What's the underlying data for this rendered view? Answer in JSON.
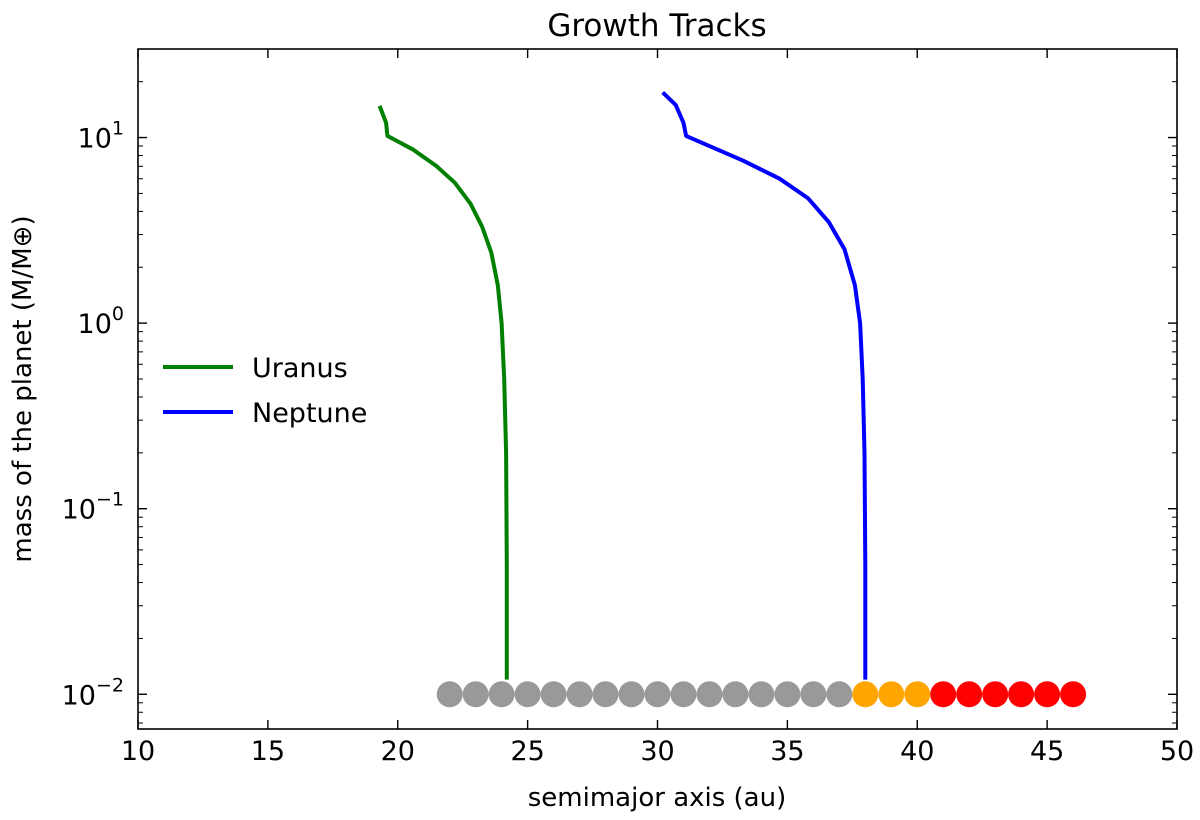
{
  "chart_data": {
    "type": "line",
    "title": "Growth Tracks",
    "xlabel": "semimajor axis (au)",
    "ylabel": "mass of the planet (M/M⊕)",
    "xlim": [
      10,
      50
    ],
    "ylim": [
      0.0065,
      30
    ],
    "yscale": "log",
    "x_ticks": [
      10,
      15,
      20,
      25,
      30,
      35,
      40,
      45,
      50
    ],
    "x_tick_labels": [
      "10",
      "15",
      "20",
      "25",
      "30",
      "35",
      "40",
      "45",
      "50"
    ],
    "y_ticks": [
      0.01,
      0.1,
      1,
      10
    ],
    "y_tick_labels": [
      {
        "base": "10",
        "exp": "−2"
      },
      {
        "base": "10",
        "exp": "−1"
      },
      {
        "base": "10",
        "exp": "0"
      },
      {
        "base": "10",
        "exp": "1"
      }
    ],
    "grid": false,
    "legend": {
      "position": "center-left"
    },
    "series": [
      {
        "name": "Uranus",
        "color": "#008000",
        "points": [
          [
            24.2,
            0.012
          ],
          [
            24.2,
            0.05
          ],
          [
            24.17,
            0.2
          ],
          [
            24.1,
            0.5
          ],
          [
            24.0,
            1.0
          ],
          [
            23.85,
            1.6
          ],
          [
            23.6,
            2.4
          ],
          [
            23.25,
            3.3
          ],
          [
            22.8,
            4.4
          ],
          [
            22.2,
            5.7
          ],
          [
            21.5,
            7.0
          ],
          [
            20.6,
            8.6
          ],
          [
            19.6,
            10.2
          ],
          [
            19.55,
            12.0
          ],
          [
            19.3,
            14.8
          ]
        ]
      },
      {
        "name": "Neptune",
        "color": "#0000ff",
        "points": [
          [
            38.0,
            0.012
          ],
          [
            38.0,
            0.05
          ],
          [
            37.97,
            0.2
          ],
          [
            37.9,
            0.5
          ],
          [
            37.8,
            1.0
          ],
          [
            37.6,
            1.6
          ],
          [
            37.2,
            2.5
          ],
          [
            36.6,
            3.5
          ],
          [
            35.8,
            4.7
          ],
          [
            34.7,
            6.0
          ],
          [
            33.3,
            7.5
          ],
          [
            31.1,
            10.2
          ],
          [
            31.0,
            12.0
          ],
          [
            30.7,
            15.0
          ],
          [
            30.2,
            17.5
          ]
        ]
      }
    ],
    "markers": {
      "y": 0.01,
      "groups": [
        {
          "color": "#999999",
          "x": [
            22,
            23,
            24,
            25,
            26,
            27,
            28,
            29,
            30,
            31,
            32,
            33,
            34,
            35,
            36,
            37
          ]
        },
        {
          "color": "#ffa500",
          "x": [
            38,
            39,
            40
          ]
        },
        {
          "color": "#ff0000",
          "x": [
            41,
            42,
            43,
            44,
            45,
            46
          ]
        }
      ]
    }
  }
}
